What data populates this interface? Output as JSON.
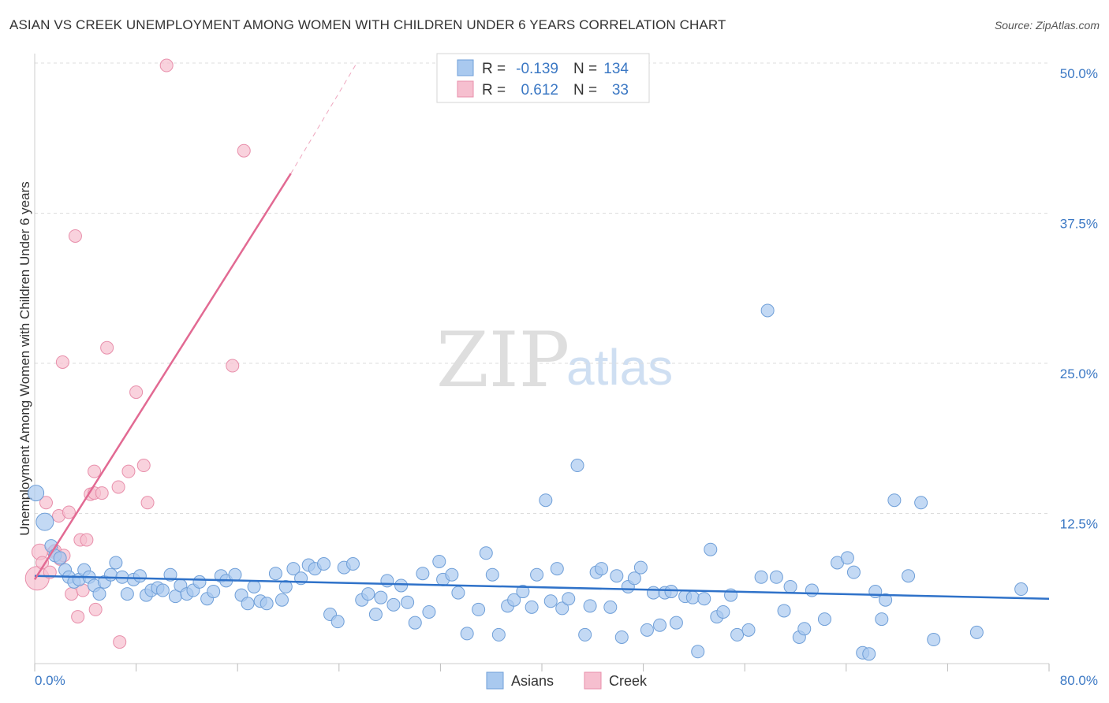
{
  "chart_data": {
    "type": "scatter",
    "title": "ASIAN VS CREEK UNEMPLOYMENT AMONG WOMEN WITH CHILDREN UNDER 6 YEARS CORRELATION CHART",
    "source": "Source: ZipAtlas.com",
    "xlabel": "",
    "ylabel": "Unemployment Among Women with Children Under 6 years",
    "xlim": [
      0,
      80
    ],
    "ylim": [
      0,
      50
    ],
    "x_tick_labels": [
      "0.0%",
      "80.0%"
    ],
    "y_ticks": [
      12.5,
      25.0,
      37.5,
      50.0
    ],
    "y_tick_labels": [
      "12.5%",
      "25.0%",
      "37.5%",
      "50.0%"
    ],
    "watermark": {
      "zip": "ZIP",
      "atlas": "atlas"
    },
    "legend": {
      "rows": [
        {
          "r_label": "R =",
          "r_value": "-0.139",
          "n_label": "N =",
          "n_value": "134"
        },
        {
          "r_label": "R =",
          "r_value": "0.612",
          "n_label": "N =",
          "n_value": "33"
        }
      ]
    },
    "series": [
      {
        "name": "Asians",
        "color": "#a9c9ef",
        "stroke": "#6f9fd8",
        "line_color": "#2f72c9",
        "trend": {
          "x0": 0,
          "y0": 7.3,
          "x1": 80,
          "y1": 5.4
        },
        "points": [
          [
            0.1,
            14.2
          ],
          [
            0.8,
            11.8
          ],
          [
            1.3,
            9.8
          ],
          [
            1.6,
            9.0
          ],
          [
            2.0,
            8.8
          ],
          [
            2.4,
            7.8
          ],
          [
            2.7,
            7.2
          ],
          [
            3.1,
            6.8
          ],
          [
            3.5,
            7.0
          ],
          [
            3.9,
            7.8
          ],
          [
            4.3,
            7.2
          ],
          [
            4.7,
            6.5
          ],
          [
            5.1,
            5.8
          ],
          [
            5.5,
            6.8
          ],
          [
            6.0,
            7.4
          ],
          [
            6.4,
            8.4
          ],
          [
            6.9,
            7.2
          ],
          [
            7.3,
            5.8
          ],
          [
            7.8,
            7.0
          ],
          [
            8.3,
            7.3
          ],
          [
            8.8,
            5.7
          ],
          [
            9.2,
            6.1
          ],
          [
            9.7,
            6.3
          ],
          [
            10.1,
            6.1
          ],
          [
            10.7,
            7.4
          ],
          [
            11.1,
            5.6
          ],
          [
            11.5,
            6.5
          ],
          [
            12.0,
            5.8
          ],
          [
            12.5,
            6.1
          ],
          [
            13.0,
            6.8
          ],
          [
            13.6,
            5.4
          ],
          [
            14.1,
            6.0
          ],
          [
            14.7,
            7.3
          ],
          [
            15.1,
            6.9
          ],
          [
            15.8,
            7.4
          ],
          [
            16.3,
            5.7
          ],
          [
            16.8,
            5.0
          ],
          [
            17.3,
            6.4
          ],
          [
            17.8,
            5.2
          ],
          [
            18.3,
            5.0
          ],
          [
            19.0,
            7.5
          ],
          [
            19.5,
            5.3
          ],
          [
            19.8,
            6.4
          ],
          [
            20.4,
            7.9
          ],
          [
            21.0,
            7.1
          ],
          [
            21.6,
            8.2
          ],
          [
            22.1,
            7.9
          ],
          [
            22.8,
            8.3
          ],
          [
            23.3,
            4.1
          ],
          [
            23.9,
            3.5
          ],
          [
            24.4,
            8.0
          ],
          [
            25.1,
            8.3
          ],
          [
            25.8,
            5.3
          ],
          [
            26.3,
            5.8
          ],
          [
            26.9,
            4.1
          ],
          [
            27.3,
            5.5
          ],
          [
            27.8,
            6.9
          ],
          [
            28.3,
            4.9
          ],
          [
            28.9,
            6.5
          ],
          [
            29.4,
            5.1
          ],
          [
            30.0,
            3.4
          ],
          [
            30.6,
            7.5
          ],
          [
            31.1,
            4.3
          ],
          [
            31.9,
            8.5
          ],
          [
            32.2,
            7.0
          ],
          [
            32.9,
            7.4
          ],
          [
            33.4,
            5.9
          ],
          [
            34.1,
            2.5
          ],
          [
            35.0,
            4.5
          ],
          [
            35.6,
            9.2
          ],
          [
            36.1,
            7.4
          ],
          [
            36.6,
            2.4
          ],
          [
            37.3,
            4.8
          ],
          [
            37.8,
            5.3
          ],
          [
            38.5,
            6.0
          ],
          [
            39.2,
            4.7
          ],
          [
            39.6,
            7.4
          ],
          [
            40.3,
            13.6
          ],
          [
            40.7,
            5.2
          ],
          [
            41.2,
            7.9
          ],
          [
            41.6,
            4.6
          ],
          [
            42.1,
            5.4
          ],
          [
            42.8,
            16.5
          ],
          [
            43.4,
            2.4
          ],
          [
            43.8,
            4.8
          ],
          [
            44.3,
            7.6
          ],
          [
            44.7,
            7.9
          ],
          [
            45.4,
            4.7
          ],
          [
            45.9,
            7.3
          ],
          [
            46.3,
            2.2
          ],
          [
            46.8,
            6.4
          ],
          [
            47.3,
            7.1
          ],
          [
            47.8,
            8.0
          ],
          [
            48.3,
            2.8
          ],
          [
            48.8,
            5.9
          ],
          [
            49.3,
            3.2
          ],
          [
            49.7,
            5.9
          ],
          [
            50.2,
            6.0
          ],
          [
            50.6,
            3.4
          ],
          [
            51.3,
            5.6
          ],
          [
            51.9,
            5.5
          ],
          [
            52.3,
            1.0
          ],
          [
            52.8,
            5.4
          ],
          [
            53.3,
            9.5
          ],
          [
            53.8,
            3.9
          ],
          [
            54.3,
            4.3
          ],
          [
            54.9,
            5.7
          ],
          [
            55.4,
            2.4
          ],
          [
            56.3,
            2.8
          ],
          [
            57.3,
            7.2
          ],
          [
            57.8,
            29.4
          ],
          [
            58.5,
            7.2
          ],
          [
            59.1,
            4.4
          ],
          [
            59.6,
            6.4
          ],
          [
            60.3,
            2.2
          ],
          [
            60.7,
            2.9
          ],
          [
            61.3,
            6.1
          ],
          [
            62.3,
            3.7
          ],
          [
            63.3,
            8.4
          ],
          [
            64.1,
            8.8
          ],
          [
            64.6,
            7.6
          ],
          [
            65.3,
            0.9
          ],
          [
            65.8,
            0.8
          ],
          [
            66.3,
            6.0
          ],
          [
            66.8,
            3.7
          ],
          [
            67.1,
            5.3
          ],
          [
            67.8,
            13.6
          ],
          [
            68.9,
            7.3
          ],
          [
            69.9,
            13.4
          ],
          [
            70.9,
            2.0
          ],
          [
            74.3,
            2.6
          ],
          [
            77.8,
            6.2
          ]
        ]
      },
      {
        "name": "Creek",
        "color": "#f6bfcf",
        "stroke": "#e88fab",
        "line_color": "#e26a93",
        "trend": {
          "x0": 0,
          "y0": 7.0,
          "x1": 20.2,
          "y1": 40.8
        },
        "trend_ext": {
          "x0": 20.2,
          "y0": 40.8,
          "x1": 25.4,
          "y1": 50.0
        },
        "points": [
          [
            0.2,
            7.1
          ],
          [
            0.4,
            9.3
          ],
          [
            0.6,
            8.4
          ],
          [
            0.9,
            13.4
          ],
          [
            1.2,
            7.6
          ],
          [
            1.5,
            9.3
          ],
          [
            1.9,
            12.3
          ],
          [
            2.2,
            25.1
          ],
          [
            2.7,
            12.6
          ],
          [
            2.9,
            5.8
          ],
          [
            3.2,
            35.6
          ],
          [
            3.4,
            3.9
          ],
          [
            3.6,
            10.3
          ],
          [
            3.8,
            6.1
          ],
          [
            4.1,
            10.3
          ],
          [
            4.4,
            14.1
          ],
          [
            4.7,
            14.2
          ],
          [
            4.7,
            16.0
          ],
          [
            4.8,
            4.5
          ],
          [
            5.3,
            14.2
          ],
          [
            5.7,
            26.3
          ],
          [
            6.6,
            14.7
          ],
          [
            6.7,
            1.8
          ],
          [
            7.4,
            16.0
          ],
          [
            8.0,
            22.6
          ],
          [
            8.6,
            16.5
          ],
          [
            8.9,
            13.4
          ],
          [
            10.4,
            49.8
          ],
          [
            1.6,
            9.4
          ],
          [
            2.0,
            8.7
          ],
          [
            16.5,
            42.7
          ],
          [
            15.6,
            24.8
          ],
          [
            2.3,
            9.0
          ]
        ]
      }
    ]
  }
}
